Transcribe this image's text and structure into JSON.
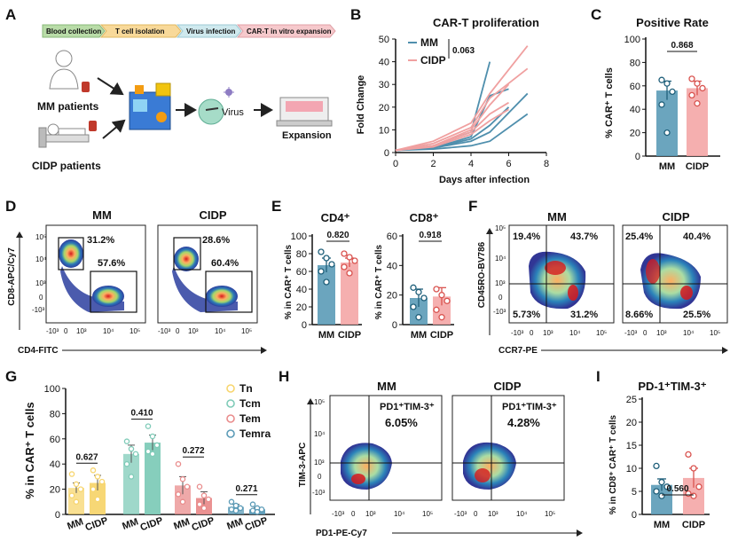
{
  "panel_labels": {
    "A": "A",
    "B": "B",
    "C": "C",
    "D": "D",
    "E": "E",
    "F": "F",
    "G": "G",
    "H": "H",
    "I": "I"
  },
  "colors": {
    "mm": "#4f8fad",
    "cidp": "#f0a0a0",
    "mm_bar": "#5b9bb7",
    "cidp_bar": "#f4a6a6",
    "tn": "#f7d56e",
    "tcm": "#7fcbb8",
    "tem": "#e98c8c",
    "temra": "#5b9bb7"
  },
  "workflow": {
    "steps": [
      "Blood collection",
      "T cell isolation",
      "Virus infection",
      "CAR-T in vitro expansion"
    ],
    "mm_label": "MM patients",
    "cidp_label": "CIDP patients",
    "virus_label": "Virus",
    "expansion_label": "Expansion"
  },
  "chart_data": [
    {
      "id": "B",
      "type": "line",
      "title": "CAR-T proliferation",
      "xlabel": "Days after infection",
      "ylabel": "Fold Change",
      "xlim": [
        0,
        8
      ],
      "ylim": [
        0,
        50
      ],
      "xticks": [
        0,
        2,
        4,
        6,
        8
      ],
      "yticks": [
        0,
        10,
        20,
        30,
        40,
        50
      ],
      "legend": [
        "MM",
        "CIDP"
      ],
      "p_value": "0.063",
      "series": [
        {
          "name": "MM",
          "points": [
            [
              0,
              1
            ],
            [
              2,
              3
            ],
            [
              4,
              9
            ],
            [
              5,
              40
            ]
          ]
        },
        {
          "name": "MM",
          "points": [
            [
              0,
              1
            ],
            [
              2,
              2
            ],
            [
              4,
              7
            ],
            [
              5,
              25
            ],
            [
              6,
              28
            ]
          ]
        },
        {
          "name": "MM",
          "points": [
            [
              0,
              1
            ],
            [
              2,
              2
            ],
            [
              4,
              6
            ],
            [
              5,
              12
            ],
            [
              6,
              20
            ]
          ]
        },
        {
          "name": "MM",
          "points": [
            [
              0,
              1
            ],
            [
              2,
              2
            ],
            [
              4,
              5
            ],
            [
              5,
              9
            ],
            [
              7,
              26
            ]
          ]
        },
        {
          "name": "MM",
          "points": [
            [
              0,
              1
            ],
            [
              2,
              1.5
            ],
            [
              4,
              3
            ],
            [
              5,
              5
            ],
            [
              7,
              17
            ]
          ]
        },
        {
          "name": "CIDP",
          "points": [
            [
              0,
              1
            ],
            [
              2,
              5
            ],
            [
              4,
              13
            ],
            [
              5,
              26
            ],
            [
              7,
              47
            ]
          ]
        },
        {
          "name": "CIDP",
          "points": [
            [
              0,
              1
            ],
            [
              2,
              4
            ],
            [
              4,
              11
            ],
            [
              5,
              24
            ],
            [
              7,
              37
            ]
          ]
        },
        {
          "name": "CIDP",
          "points": [
            [
              0,
              1
            ],
            [
              2,
              3
            ],
            [
              4,
              10
            ],
            [
              5,
              21
            ],
            [
              6,
              30
            ]
          ]
        },
        {
          "name": "CIDP",
          "points": [
            [
              0,
              1
            ],
            [
              2,
              3
            ],
            [
              4,
              9
            ],
            [
              5,
              17
            ],
            [
              6,
              22
            ]
          ]
        },
        {
          "name": "CIDP",
          "points": [
            [
              0,
              1
            ],
            [
              2,
              2.5
            ],
            [
              4,
              8
            ],
            [
              5,
              14
            ],
            [
              6,
              19
            ]
          ]
        }
      ]
    },
    {
      "id": "C",
      "type": "bar",
      "title": "Positive Rate",
      "ylabel": "% CAR⁺ T cells",
      "ylim": [
        0,
        100
      ],
      "yticks": [
        0,
        20,
        40,
        60,
        80,
        100
      ],
      "categories": [
        "MM",
        "CIDP"
      ],
      "values": [
        56,
        58
      ],
      "errors": [
        8,
        6
      ],
      "points": [
        [
          65,
          62,
          55,
          44,
          20
        ],
        [
          66,
          62,
          58,
          52,
          45
        ]
      ],
      "p_value": "0.868"
    },
    {
      "id": "E1",
      "type": "bar",
      "title": "CD4⁺",
      "ylabel": "% in CAR⁺ T cells",
      "ylim": [
        0,
        100
      ],
      "yticks": [
        0,
        20,
        40,
        60,
        80,
        100
      ],
      "categories": [
        "MM",
        "CIDP"
      ],
      "values": [
        67,
        70
      ],
      "errors": [
        8,
        5
      ],
      "points": [
        [
          82,
          75,
          68,
          60,
          48
        ],
        [
          80,
          76,
          72,
          65,
          58
        ]
      ],
      "p_value": "0.820"
    },
    {
      "id": "E2",
      "type": "bar",
      "title": "CD8⁺",
      "ylabel": "% in CAR⁺ T cells",
      "ylim": [
        0,
        60
      ],
      "yticks": [
        0,
        20,
        40,
        60
      ],
      "categories": [
        "MM",
        "CIDP"
      ],
      "values": [
        18,
        19
      ],
      "errors": [
        6,
        6
      ],
      "points": [
        [
          25,
          22,
          18,
          12,
          5
        ],
        [
          24,
          20,
          16,
          10,
          5
        ]
      ],
      "p_value": "0.918"
    },
    {
      "id": "G",
      "type": "bar",
      "ylabel": "% in CAR⁺ T cells",
      "ylim": [
        0,
        100
      ],
      "yticks": [
        0,
        20,
        40,
        60,
        80,
        100
      ],
      "categories": [
        "MM",
        "CIDP"
      ],
      "series": [
        {
          "name": "Tn",
          "values": [
            21,
            25
          ],
          "errors": [
            4,
            6
          ],
          "points": [
            [
              32,
              24,
              20,
              15,
              10
            ],
            [
              35,
              30,
              26,
              20,
              12
            ]
          ]
        },
        {
          "name": "Tcm",
          "values": [
            48,
            57
          ],
          "errors": [
            7,
            6
          ],
          "points": [
            [
              58,
              52,
              48,
              40,
              30
            ],
            [
              70,
              62,
              55,
              50,
              48
            ]
          ]
        },
        {
          "name": "Tem",
          "values": [
            23,
            13
          ],
          "errors": [
            7,
            5
          ],
          "points": [
            [
              40,
              28,
              22,
              16,
              10
            ],
            [
              22,
              15,
              12,
              8,
              5
            ]
          ]
        },
        {
          "name": "Temra",
          "values": [
            6,
            4
          ],
          "errors": [
            2,
            1.5
          ],
          "points": [
            [
              10,
              7,
              5,
              4,
              3
            ],
            [
              8,
              5,
              4,
              3,
              2
            ]
          ]
        }
      ],
      "p_values": [
        "0.627",
        "0.410",
        "0.272",
        "0.271"
      ]
    },
    {
      "id": "I",
      "type": "bar",
      "title": "PD-1⁺TIM-3⁺",
      "ylabel": "% in CD8⁺ CAR⁺ T cells",
      "ylim": [
        0,
        25
      ],
      "yticks": [
        0,
        5,
        10,
        15,
        20,
        25
      ],
      "categories": [
        "MM",
        "CIDP"
      ],
      "values": [
        6.4,
        7.9
      ],
      "errors": [
        1.3,
        2.1
      ],
      "points": [
        [
          10.5,
          7,
          6,
          5,
          4
        ],
        [
          13,
          10,
          6,
          4.5,
          4
        ]
      ],
      "p_value": "0.560"
    }
  ],
  "flow": {
    "D": {
      "groups": [
        "MM",
        "CIDP"
      ],
      "xaxis": "CD4-FITC",
      "yaxis": "CD8-APC/Cy7",
      "mm": {
        "upper": "31.2%",
        "lower": "57.6%"
      },
      "cidp": {
        "upper": "28.6%",
        "lower": "60.4%"
      }
    },
    "F": {
      "groups": [
        "MM",
        "CIDP"
      ],
      "xaxis": "CCR7-PE",
      "yaxis": "CD45RO-BV786",
      "mm": {
        "q1": "19.4%",
        "q2": "43.7%",
        "q3": "5.73%",
        "q4": "31.2%"
      },
      "cidp": {
        "q1": "25.4%",
        "q2": "40.4%",
        "q3": "8.66%",
        "q4": "25.5%"
      }
    },
    "H": {
      "groups": [
        "MM",
        "CIDP"
      ],
      "xaxis": "PD1-PE-Cy7",
      "yaxis": "TIM-3-APC",
      "gate": "PD1⁺TIM-3⁺",
      "mm": "6.05%",
      "cidp": "4.28%"
    },
    "ticks": {
      "neg3": "-10³",
      "zero": "0",
      "e3": "10³",
      "e4": "10⁴",
      "e5": "10⁵"
    }
  }
}
